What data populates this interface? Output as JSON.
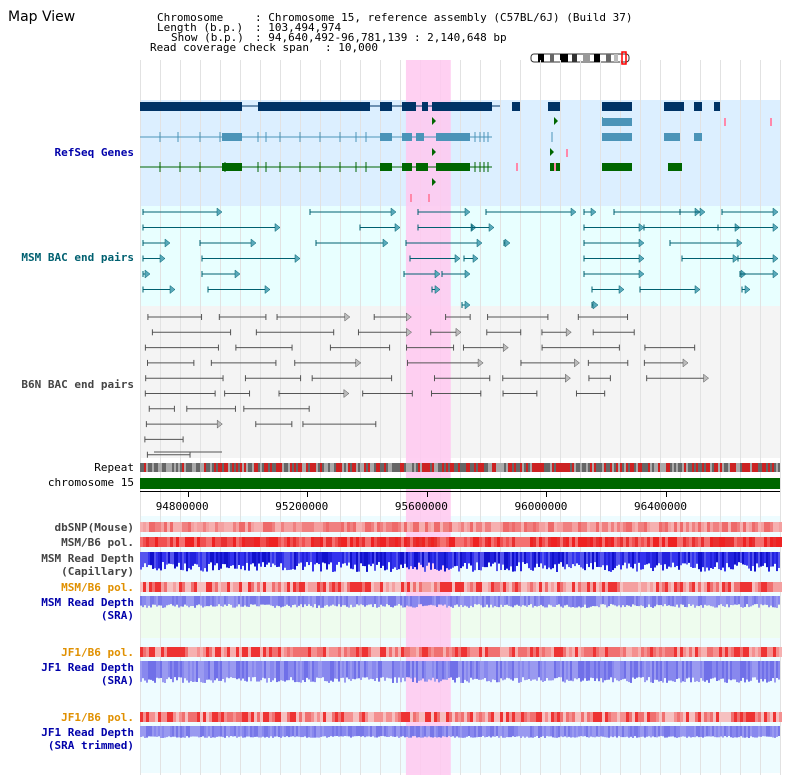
{
  "title": "Map View",
  "info": {
    "chromosome_label": "Chromosome",
    "chromosome_value": ": Chromosome 15, reference assembly (C57BL/6J) (Build 37)",
    "length_label": "Length (b.p.)",
    "length_value": ": 103,494,974",
    "show_label": "Show (b.p.)",
    "show_value": ": 94,640,492-96,781,139 : 2,140,648 bp",
    "coverage_label": "Read coverage check span",
    "coverage_value": ": 10,000"
  },
  "tracks": {
    "refseq": "RefSeq Genes",
    "msm_bac": "MSM BAC end pairs",
    "b6n_bac": "B6N BAC end pairs",
    "repeat": "Repeat",
    "chromosome": "chromosome 15",
    "dbsnp": "dbSNP(Mouse)",
    "msm_b6_pol_1": "MSM/B6 pol.",
    "msm_read_depth_cap_1": "MSM Read Depth",
    "msm_read_depth_cap_2": "(Capillary)",
    "msm_b6_pol_2": "MSM/B6 pol.",
    "msm_read_depth_sra_1": "MSM Read Depth",
    "msm_read_depth_sra_2": "(SRA)",
    "jf1_b6_pol_1": "JF1/B6 pol.",
    "jf1_read_depth_sra_1": "JF1 Read Depth",
    "jf1_read_depth_sra_2": "(SRA)",
    "jf1_b6_pol_2": "JF1/B6 pol.",
    "jf1_read_depth_trim_1": "JF1 Read Depth",
    "jf1_read_depth_trim_2": "(SRA trimmed)"
  },
  "ruler": {
    "start_bp": 94640492,
    "end_bp": 96781139,
    "ticks": [
      "94800000",
      "95200000",
      "95600000",
      "96000000",
      "96400000"
    ],
    "tick_values": [
      94800000,
      95200000,
      95600000,
      96000000,
      96400000
    ]
  },
  "highlight": {
    "start_bp": 95530000,
    "end_bp": 95680000
  },
  "colors": {
    "refseq_bg": "#dcefff",
    "bac_bg": "#e8ffff",
    "b6n_bg": "#f4f4f4",
    "highlight": "#ffc8f0",
    "gene_navy": "#003366",
    "gene_blue": "#4b94b8",
    "gene_green": "#006600",
    "msm_teal": "#006070",
    "b6n_gray": "#555555",
    "chrom_green": "#006600",
    "depth_blue": "#2222dd",
    "depth_light": "#8888ee",
    "pol_red": "#ee2222"
  }
}
